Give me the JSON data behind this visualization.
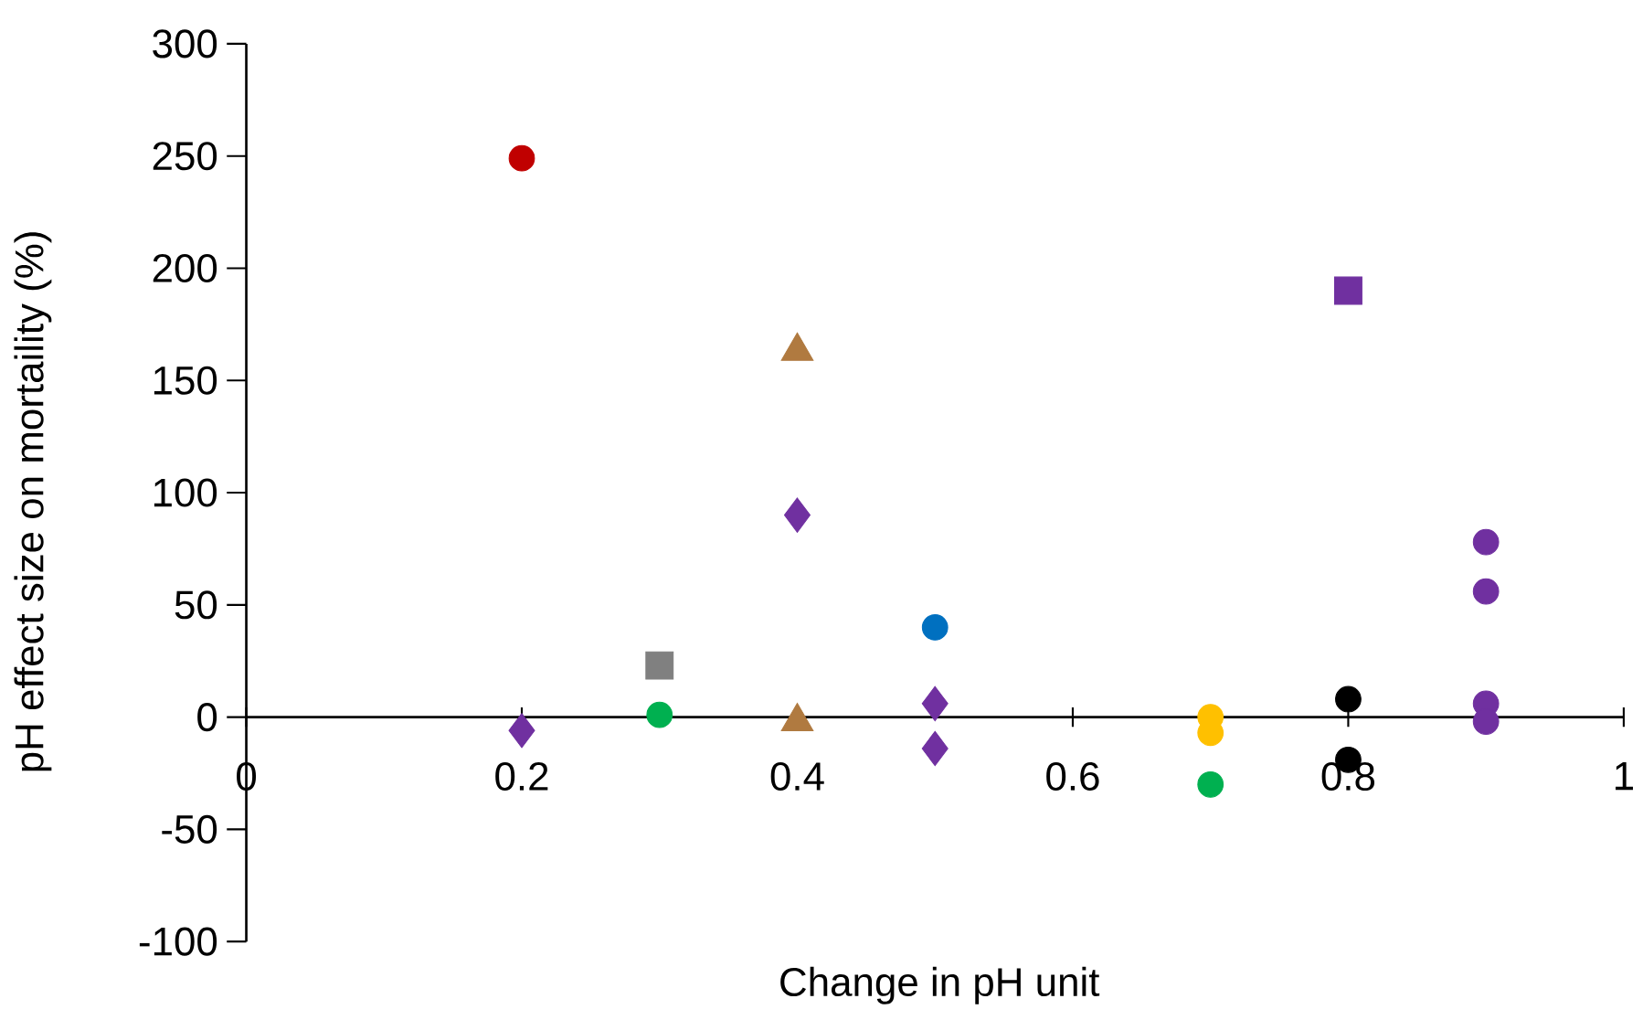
{
  "chart_data": {
    "type": "scatter",
    "xlabel": "Change in pH unit",
    "ylabel": "pH effect size on mortaility (%)",
    "xlim": [
      0,
      1
    ],
    "ylim": [
      -100,
      300
    ],
    "xticks": [
      0,
      0.2,
      0.4,
      0.6,
      0.8,
      1
    ],
    "yticks": [
      -100,
      -50,
      0,
      50,
      100,
      150,
      200,
      250,
      300
    ],
    "series": [
      {
        "color": "#c00000",
        "marker": "circle",
        "x": [
          0.2
        ],
        "values": [
          249
        ]
      },
      {
        "color": "#7030a0",
        "marker": "diamond",
        "x": [
          0.2,
          0.4,
          0.5,
          0.5
        ],
        "values": [
          -6,
          90,
          6,
          -14
        ]
      },
      {
        "color": "#808080",
        "marker": "square",
        "x": [
          0.3
        ],
        "values": [
          23
        ]
      },
      {
        "color": "#00b050",
        "marker": "circle",
        "x": [
          0.3,
          0.7
        ],
        "values": [
          1,
          -30
        ]
      },
      {
        "color": "#b07a40",
        "marker": "triangle",
        "x": [
          0.4,
          0.4
        ],
        "values": [
          163,
          -2
        ]
      },
      {
        "color": "#0070c0",
        "marker": "circle",
        "x": [
          0.5
        ],
        "values": [
          40
        ]
      },
      {
        "color": "#ffc000",
        "marker": "circle",
        "x": [
          0.7,
          0.7
        ],
        "values": [
          0,
          -7
        ]
      },
      {
        "color": "#7030a0",
        "marker": "square",
        "x": [
          0.8
        ],
        "values": [
          190
        ]
      },
      {
        "color": "#000000",
        "marker": "circle",
        "x": [
          0.8,
          0.8
        ],
        "values": [
          8,
          -19
        ]
      },
      {
        "color": "#7030a0",
        "marker": "circle",
        "x": [
          0.9,
          0.9,
          0.9,
          0.9
        ],
        "values": [
          78,
          56,
          6,
          -2
        ]
      }
    ]
  }
}
